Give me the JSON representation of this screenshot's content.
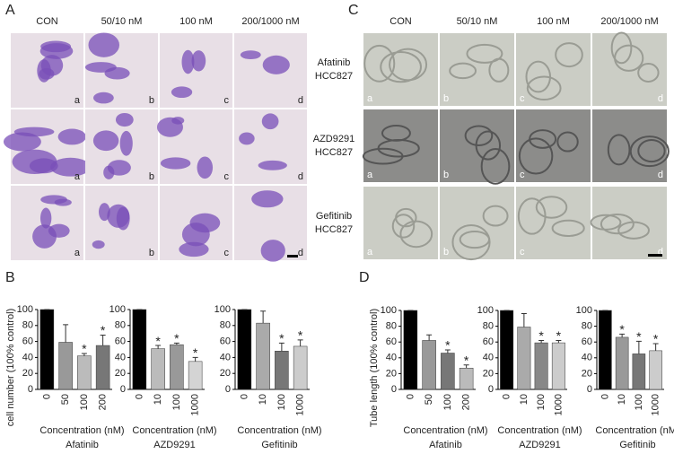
{
  "panel_labels": [
    "A",
    "B",
    "C",
    "D"
  ],
  "panel_a": {
    "columns": [
      "CON",
      "50/10 nM",
      "100 nM",
      "200/1000 nM"
    ],
    "cell_letters": [
      "a",
      "b",
      "c",
      "d"
    ]
  },
  "panel_c": {
    "columns": [
      "CON",
      "50/10 nM",
      "100 nM",
      "200/1000 nM"
    ],
    "rows": [
      [
        "Afatinib",
        "HCC827"
      ],
      [
        "AZD9291",
        "HCC827"
      ],
      [
        "Gefitinib",
        "HCC827"
      ]
    ],
    "cell_letters": [
      "a",
      "b",
      "c",
      "d"
    ]
  },
  "chart_data": [
    {
      "type": "bar",
      "title": "Afatinib",
      "ylabel": "cell number (100% control)",
      "xlabel": "Concentration (nM)",
      "categories": [
        "0",
        "50",
        "100",
        "200"
      ],
      "values": [
        100,
        59,
        42,
        55
      ],
      "errors": [
        0,
        22,
        3,
        13
      ],
      "colors": [
        "#000000",
        "#999999",
        "#bbbbbb",
        "#777777"
      ],
      "value_annotations": [
        null,
        null,
        "*",
        "*"
      ],
      "ylim": [
        0,
        100
      ],
      "yticks": [
        0,
        20,
        40,
        60,
        80,
        100
      ]
    },
    {
      "type": "bar",
      "title": "AZD9291",
      "xlabel": "Concentration (nM)",
      "categories": [
        "0",
        "10",
        "100",
        "1000"
      ],
      "values": [
        100,
        51,
        56,
        35
      ],
      "errors": [
        0,
        4,
        2,
        5
      ],
      "colors": [
        "#000000",
        "#bbbbbb",
        "#999999",
        "#d4d4d4"
      ],
      "value_annotations": [
        null,
        "*",
        "*",
        "*"
      ],
      "ylim": [
        0,
        100
      ],
      "yticks": [
        0,
        20,
        40,
        60,
        80,
        100
      ]
    },
    {
      "type": "bar",
      "title": "Gefitinib",
      "xlabel": "Concentration (nM)",
      "categories": [
        "0",
        "10",
        "100",
        "1000"
      ],
      "values": [
        100,
        83,
        48,
        54
      ],
      "errors": [
        0,
        15,
        10,
        8
      ],
      "colors": [
        "#000000",
        "#aaaaaa",
        "#777777",
        "#cccccc"
      ],
      "value_annotations": [
        null,
        null,
        "*",
        "*"
      ],
      "ylim": [
        0,
        100
      ],
      "yticks": [
        0,
        20,
        40,
        60,
        80,
        100
      ]
    },
    {
      "type": "bar",
      "title": "Afatinib",
      "ylabel": "Tube length (100% control)",
      "xlabel": "Concentration (nM)",
      "categories": [
        "0",
        "50",
        "100",
        "200"
      ],
      "values": [
        100,
        62,
        46,
        27
      ],
      "errors": [
        0,
        7,
        4,
        4
      ],
      "colors": [
        "#000000",
        "#999999",
        "#777777",
        "#bbbbbb"
      ],
      "value_annotations": [
        null,
        null,
        "*",
        "*"
      ],
      "ylim": [
        0,
        100
      ],
      "yticks": [
        0,
        20,
        40,
        60,
        80,
        100
      ]
    },
    {
      "type": "bar",
      "title": "AZD9291",
      "xlabel": "Concentration (nM)",
      "categories": [
        "0",
        "10",
        "100",
        "1000"
      ],
      "values": [
        100,
        79,
        59,
        59
      ],
      "errors": [
        0,
        17,
        3,
        3
      ],
      "colors": [
        "#000000",
        "#aaaaaa",
        "#888888",
        "#cccccc"
      ],
      "value_annotations": [
        null,
        null,
        "*",
        "*"
      ],
      "ylim": [
        0,
        100
      ],
      "yticks": [
        0,
        20,
        40,
        60,
        80,
        100
      ]
    },
    {
      "type": "bar",
      "title": "Gefitinib",
      "xlabel": "Concentration (nM)",
      "categories": [
        "0",
        "10",
        "100",
        "1000"
      ],
      "values": [
        100,
        66,
        45,
        49
      ],
      "errors": [
        0,
        4,
        16,
        9
      ],
      "colors": [
        "#000000",
        "#999999",
        "#777777",
        "#cccccc"
      ],
      "value_annotations": [
        null,
        "*",
        "*",
        "*"
      ],
      "ylim": [
        0,
        100
      ],
      "yticks": [
        0,
        20,
        40,
        60,
        80,
        100
      ]
    }
  ]
}
